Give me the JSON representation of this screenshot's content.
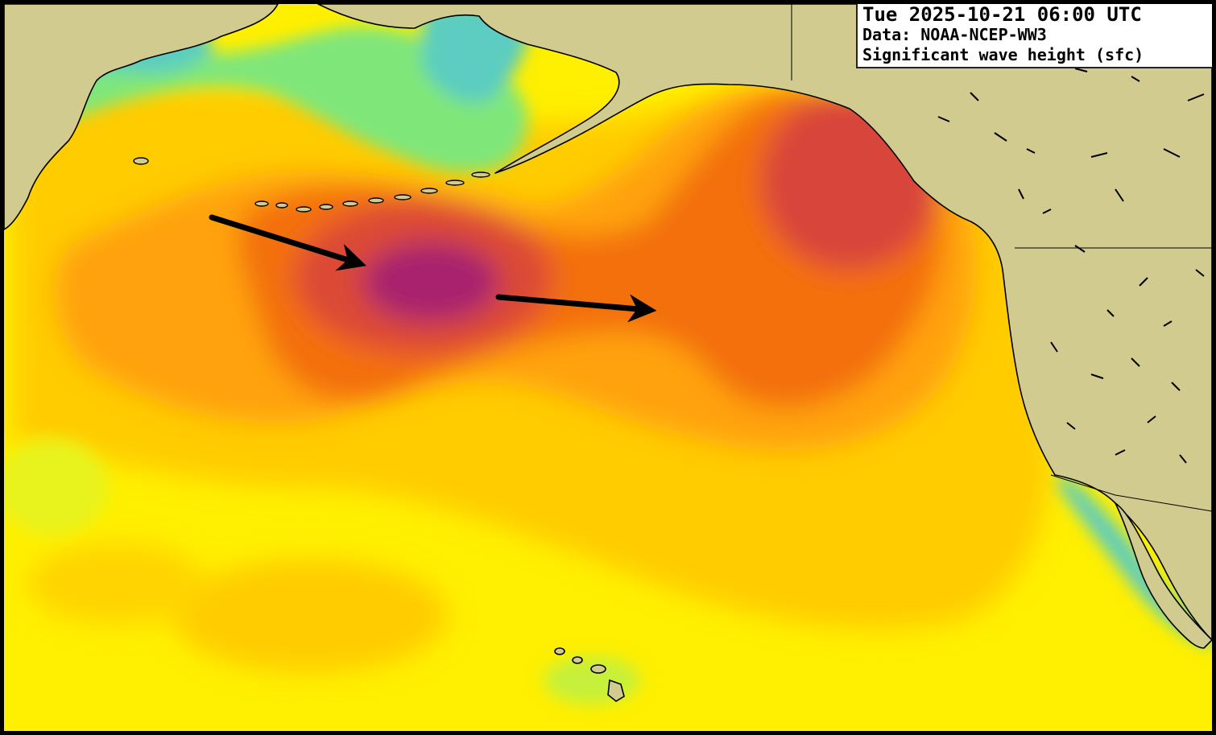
{
  "header": {
    "datetime": "Tue 2025-10-21 06:00 UTC",
    "source": "Data: NOAA-NCEP-WW3",
    "variable": "Significant wave height (sfc)"
  },
  "colors": {
    "land": "#d1cb90",
    "coast_calm": "#5ccdc0",
    "calm_green": "#7fe67a",
    "low_yellow": "#ffef00",
    "mid_gold": "#ffcc00",
    "orange": "#ff9a0a",
    "dark_orange": "#f46e10",
    "red": "#d8453a",
    "peak_purple": "#a8226e",
    "arrow": "#000000"
  },
  "annotations": {
    "arrow_count": 2,
    "arrow_meaning": "storm swell propagation direction"
  }
}
